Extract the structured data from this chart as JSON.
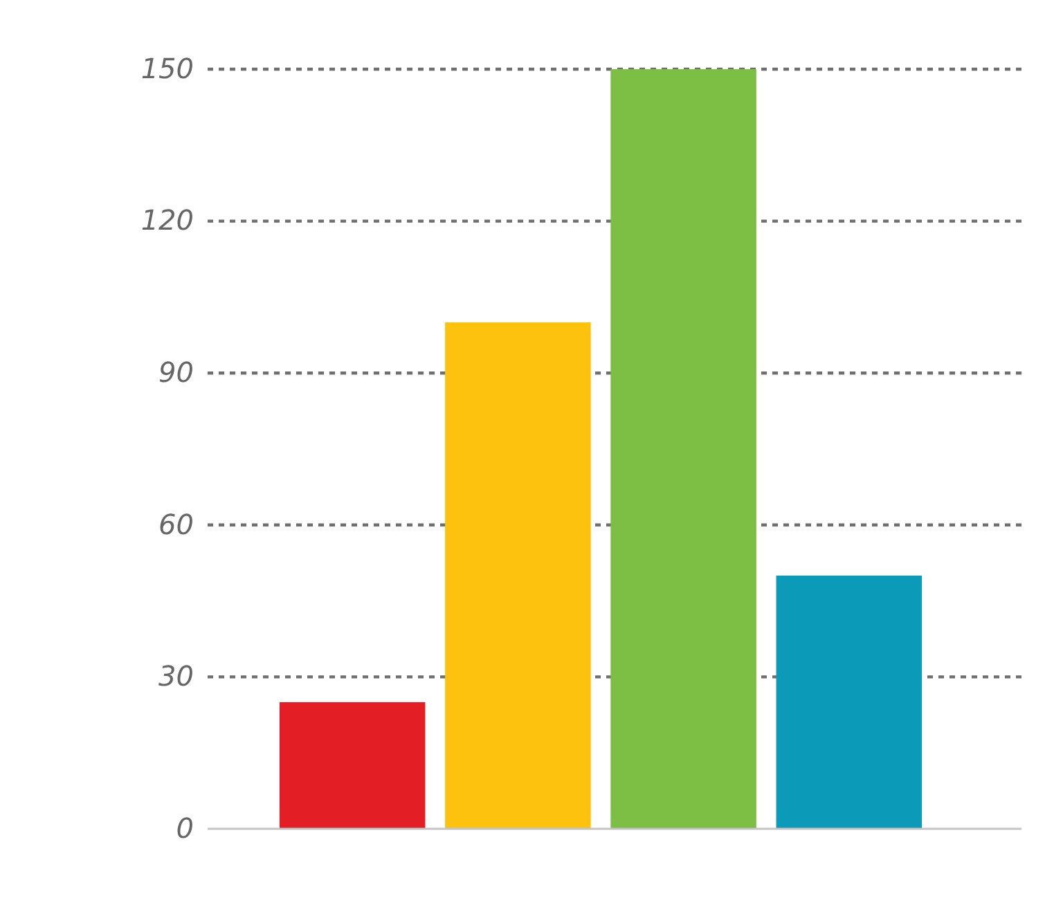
{
  "chart_data": {
    "type": "bar",
    "categories": [
      null,
      null,
      null,
      null
    ],
    "values": [
      25,
      100,
      150,
      50
    ],
    "colors": [
      "#e31e24",
      "#fdc20e",
      "#7dbf44",
      "#0b9ab8"
    ],
    "ylim": [
      0,
      150
    ],
    "yticks": [
      0,
      30,
      60,
      90,
      120,
      150
    ],
    "grid": "y"
  }
}
